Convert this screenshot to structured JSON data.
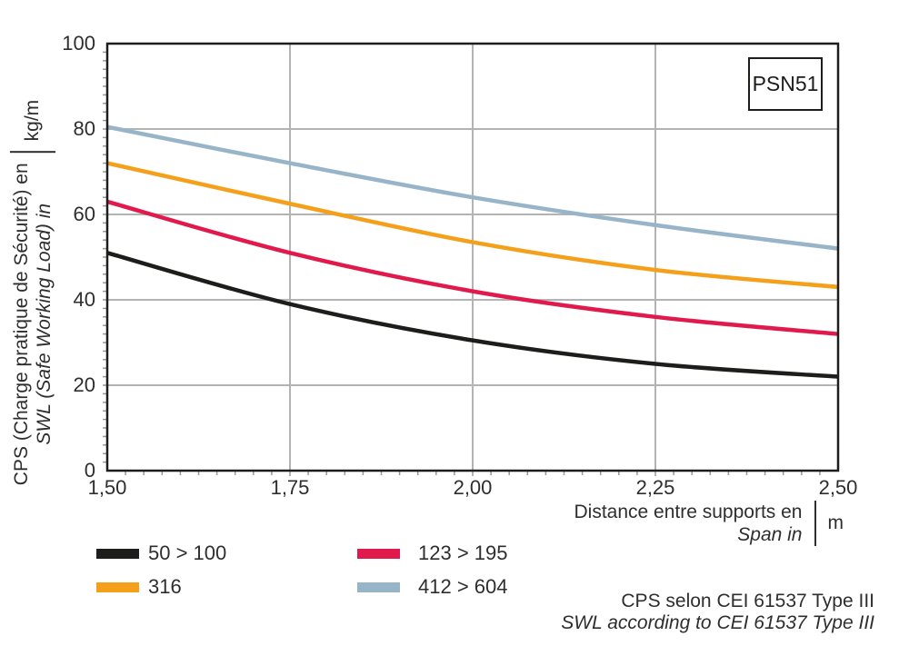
{
  "badge": "PSN51",
  "chart_data": {
    "type": "line",
    "title": "PSN51",
    "x_axis": {
      "label_fr": "Distance entre supports en",
      "label_en": "Span in",
      "unit": "m",
      "tick_labels": [
        "1,50",
        "1,75",
        "2,00",
        "2,25",
        "2,50"
      ],
      "ticks": [
        1.5,
        1.75,
        2.0,
        2.25,
        2.5
      ],
      "minor_step": 0.025
    },
    "y_axis": {
      "label_fr": "CPS (Charge pratique de Sécurité) en",
      "label_en": "SWL (Safe Working Load) in",
      "unit": "kg/m",
      "ticks": [
        0,
        20,
        40,
        60,
        80,
        100
      ],
      "minor_step": 2
    },
    "xlim": [
      1.5,
      2.5
    ],
    "ylim": [
      0,
      100
    ],
    "grid": true,
    "legend_position": "bottom",
    "x": [
      1.5,
      1.75,
      2.0,
      2.25,
      2.5
    ],
    "series": [
      {
        "name": "50 > 100",
        "color": "#1d1d1b",
        "values": [
          51,
          39,
          30.5,
          25,
          22
        ]
      },
      {
        "name": "316",
        "color": "#f5a01b",
        "values": [
          72,
          62.5,
          53.5,
          47,
          43
        ]
      },
      {
        "name": "123 > 195",
        "color": "#e11a4d",
        "values": [
          63,
          51,
          42,
          36,
          32
        ]
      },
      {
        "name": "412 > 604",
        "color": "#97b4c8",
        "values": [
          80.5,
          72,
          64,
          57.5,
          52
        ]
      }
    ],
    "note_fr": "CPS selon CEI 61537 Type III",
    "note_en": "SWL according to CEI 61537 Type III",
    "colors": {
      "frame": "#1d1d1b",
      "grid": "#b3b3b3",
      "minor_tick": "#999999",
      "text": "#2e2e2e"
    }
  }
}
